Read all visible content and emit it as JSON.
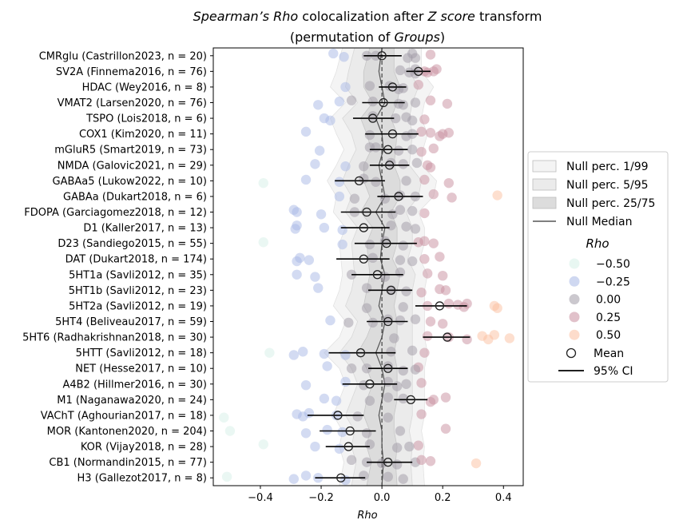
{
  "chart_data": {
    "type": "scatter",
    "title_parts": [
      {
        "text": "Spearman’s Rho",
        "italic": true
      },
      {
        "text": " colocalization after ",
        "italic": false
      },
      {
        "text": "Z score",
        "italic": true
      },
      {
        "text": " transform",
        "italic": false
      }
    ],
    "subtitle_parts": [
      {
        "text": "(permutation of ",
        "italic": false
      },
      {
        "text": "Groups",
        "italic": true
      },
      {
        "text": ")",
        "italic": false
      }
    ],
    "xlabel": "Rho",
    "xlim": [
      -0.555,
      0.465
    ],
    "x_ticks": [
      -0.4,
      -0.2,
      0.0,
      0.2,
      0.4
    ],
    "x_tick_labels": [
      "−0.4",
      "−0.2",
      "0.0",
      "0.2",
      "0.4"
    ],
    "categories": [
      "CMRglu (Castrillon2023, n = 20)",
      "SV2A (Finnema2016, n = 76)",
      "HDAC (Wey2016, n = 8)",
      "VMAT2 (Larsen2020, n = 76)",
      "TSPO (Lois2018, n = 6)",
      "COX1 (Kim2020, n = 11)",
      "mGluR5 (Smart2019, n = 73)",
      "NMDA (Galovic2021, n = 29)",
      "GABAa5 (Lukow2022, n = 10)",
      "GABAa (Dukart2018, n = 6)",
      "FDOPA (Garciagomez2018, n = 12)",
      "D1 (Kaller2017, n = 13)",
      "D23 (Sandiego2015, n = 55)",
      "DAT (Dukart2018, n = 174)",
      "5HT1a (Savli2012, n = 35)",
      "5HT1b (Savli2012, n = 23)",
      "5HT2a (Savli2012, n = 19)",
      "5HT4 (Beliveau2017, n = 59)",
      "5HT6 (Radhakrishnan2018, n = 30)",
      "5HTT (Savli2012, n = 18)",
      "NET (Hesse2017, n = 10)",
      "A4B2 (Hillmer2016, n = 30)",
      "M1 (Naganawa2020, n = 24)",
      "VAChT (Aghourian2017, n = 18)",
      "MOR (Kantonen2020, n = 204)",
      "KOR (Vijay2018, n = 28)",
      "CB1 (Normandin2015, n = 77)",
      "H3 (Gallezot2017, n = 8)"
    ],
    "mean": [
      0.0,
      0.12,
      0.035,
      0.005,
      -0.03,
      0.035,
      0.02,
      0.025,
      -0.075,
      0.055,
      -0.05,
      -0.06,
      0.015,
      -0.06,
      -0.015,
      0.03,
      0.19,
      0.02,
      0.215,
      -0.07,
      0.02,
      -0.04,
      0.095,
      -0.145,
      -0.105,
      -0.11,
      0.02,
      -0.135
    ],
    "ci95": [
      [
        -0.06,
        0.065
      ],
      [
        0.08,
        0.16
      ],
      [
        -0.01,
        0.08
      ],
      [
        -0.065,
        0.075
      ],
      [
        -0.095,
        0.04
      ],
      [
        -0.055,
        0.12
      ],
      [
        -0.04,
        0.085
      ],
      [
        -0.04,
        0.09
      ],
      [
        -0.155,
        0.01
      ],
      [
        -0.015,
        0.135
      ],
      [
        -0.135,
        0.045
      ],
      [
        -0.135,
        0.025
      ],
      [
        -0.09,
        0.115
      ],
      [
        -0.15,
        0.025
      ],
      [
        -0.1,
        0.07
      ],
      [
        -0.045,
        0.1
      ],
      [
        0.11,
        0.28
      ],
      [
        -0.05,
        0.085
      ],
      [
        0.135,
        0.29
      ],
      [
        -0.175,
        0.045
      ],
      [
        -0.045,
        0.085
      ],
      [
        -0.13,
        0.05
      ],
      [
        0.04,
        0.15
      ],
      [
        -0.245,
        -0.06
      ],
      [
        -0.205,
        -0.02
      ],
      [
        -0.185,
        -0.04
      ],
      [
        -0.05,
        0.1
      ],
      [
        -0.22,
        -0.055
      ]
    ],
    "points": [
      [
        -0.16,
        -0.02,
        0.085,
        0.16,
        -0.125,
        0.1,
        -0.05,
        0.11
      ],
      [
        0.15,
        0.18,
        0.17,
        0.11,
        0.06,
        0.09,
        0.11,
        0.14
      ],
      [
        -0.04,
        0.07,
        0.12,
        -0.12,
        0.055,
        0.025
      ],
      [
        -0.21,
        -0.14,
        0.215,
        -0.1,
        0.11,
        0.07,
        -0.03,
        0.055,
        0.16
      ],
      [
        -0.19,
        -0.17,
        0.08,
        0.14,
        -0.03,
        0.045,
        0.1
      ],
      [
        -0.25,
        0.2,
        0.19,
        0.22,
        -0.04,
        0.13,
        0.1,
        0.08,
        0.16
      ],
      [
        -0.205,
        -0.04,
        0.1,
        0.13,
        0.17,
        0.055,
        -0.02
      ],
      [
        -0.22,
        -0.12,
        0.115,
        0.15,
        0.16,
        0.07,
        -0.06,
        0.03
      ],
      [
        -0.39,
        -0.25,
        -0.14,
        -0.06,
        0.08,
        0.22,
        0.14,
        -0.02
      ],
      [
        -0.14,
        -0.09,
        0.38,
        0.23,
        0.17,
        0.11,
        0.01,
        0.06
      ],
      [
        -0.29,
        -0.28,
        -0.2,
        0.1,
        0.14,
        0.06,
        -0.09,
        0.035
      ],
      [
        -0.285,
        -0.28,
        -0.19,
        -0.13,
        0.08,
        0.11,
        0.03
      ],
      [
        -0.39,
        -0.13,
        0.14,
        0.17,
        0.07,
        0.12,
        -0.04,
        0.01
      ],
      [
        -0.28,
        -0.27,
        -0.24,
        0.19,
        0.14,
        0.1,
        -0.03,
        0.06
      ],
      [
        -0.28,
        -0.22,
        0.15,
        0.2,
        0.06,
        -0.1,
        0.01
      ],
      [
        -0.21,
        0.21,
        0.13,
        0.19,
        0.08,
        -0.05,
        0.03
      ],
      [
        0.07,
        0.28,
        0.37,
        0.38,
        0.25,
        0.27,
        0.22,
        0.15,
        -0.05
      ],
      [
        -0.17,
        -0.11,
        0.11,
        0.16,
        0.2,
        0.06,
        -0.03,
        0.02
      ],
      [
        0.35,
        0.33,
        0.42,
        0.37,
        0.22,
        0.28,
        0.15,
        0.04
      ],
      [
        -0.37,
        -0.29,
        -0.26,
        -0.19,
        0.1,
        0.14,
        -0.12,
        0.03
      ],
      [
        -0.18,
        -0.05,
        0.07,
        0.12,
        0.11,
        0.02,
        -0.1
      ],
      [
        -0.25,
        -0.12,
        0.08,
        0.05,
        0.13,
        -0.06,
        0.02
      ],
      [
        -0.19,
        -0.15,
        0.21,
        0.17,
        0.16,
        0.07,
        -0.04,
        0.02
      ],
      [
        -0.52,
        -0.28,
        -0.26,
        -0.24,
        -0.15,
        0.02,
        0.13,
        -0.08
      ],
      [
        -0.5,
        -0.25,
        -0.18,
        -0.13,
        0.21,
        0.06,
        -0.05
      ],
      [
        -0.39,
        -0.22,
        -0.14,
        0.12,
        0.05,
        -0.04,
        0.09
      ],
      [
        0.31,
        -0.1,
        0.11,
        0.05,
        0.16,
        0.0,
        0.13,
        -0.05
      ],
      [
        -0.51,
        -0.29,
        -0.25,
        -0.21,
        -0.12,
        0.02,
        0.07,
        -0.06
      ]
    ],
    "null_median": [
      0.0,
      -0.01,
      0.0,
      0.01,
      -0.02,
      0.0,
      0.005,
      -0.01,
      0.0,
      0.01,
      -0.02,
      0.01,
      0.0,
      -0.005,
      0.01,
      0.0,
      -0.01,
      0.01,
      0.0,
      -0.02,
      0.0,
      0.01,
      0.0,
      -0.01,
      0.0,
      0.0,
      0.005,
      0.0
    ],
    "null_p25_75": [
      0.04,
      0.05,
      0.06,
      0.04,
      0.05,
      0.05,
      0.04,
      0.05,
      0.06,
      0.05,
      0.05,
      0.04,
      0.05,
      0.04,
      0.05,
      0.05,
      0.05,
      0.04,
      0.05,
      0.06,
      0.05,
      0.04,
      0.05,
      0.05,
      0.04,
      0.05,
      0.04,
      0.05
    ],
    "null_p5_95": [
      0.09,
      0.1,
      0.12,
      0.09,
      0.11,
      0.1,
      0.09,
      0.1,
      0.13,
      0.11,
      0.1,
      0.09,
      0.1,
      0.09,
      0.1,
      0.1,
      0.11,
      0.09,
      0.1,
      0.12,
      0.1,
      0.09,
      0.1,
      0.11,
      0.09,
      0.1,
      0.09,
      0.1
    ],
    "null_p1_99": [
      0.13,
      0.14,
      0.17,
      0.13,
      0.15,
      0.15,
      0.13,
      0.14,
      0.18,
      0.16,
      0.14,
      0.13,
      0.14,
      0.13,
      0.14,
      0.14,
      0.15,
      0.13,
      0.14,
      0.17,
      0.14,
      0.13,
      0.14,
      0.15,
      0.13,
      0.14,
      0.13,
      0.14
    ],
    "legend": {
      "placement": "center-right",
      "bands": [
        {
          "label": "Null perc. 1/99",
          "fill": "#f4f4f4"
        },
        {
          "label": "Null perc. 5/95",
          "fill": "#ebebeb"
        },
        {
          "label": "Null perc. 25/75",
          "fill": "#dcdcdc"
        }
      ],
      "median_label": "Null Median",
      "hue_title": "Rho",
      "hue_items": [
        {
          "label": "−0.50",
          "value": -0.5
        },
        {
          "label": "−0.25",
          "value": -0.25
        },
        {
          "label": "0.00",
          "value": 0.0
        },
        {
          "label": "0.25",
          "value": 0.25
        },
        {
          "label": "0.50",
          "value": 0.5
        }
      ],
      "mean_label": "Mean",
      "ci_label": "95% CI"
    },
    "colors": {
      "neg_strong": "#d6f0e8",
      "neg_mid": "#a8b8e6",
      "zero": "#a09aa6",
      "pos_mid": "#c88e9e",
      "pos_strong": "#fbc0a0",
      "median_line": "#555555",
      "ci_line": "#000000"
    }
  }
}
